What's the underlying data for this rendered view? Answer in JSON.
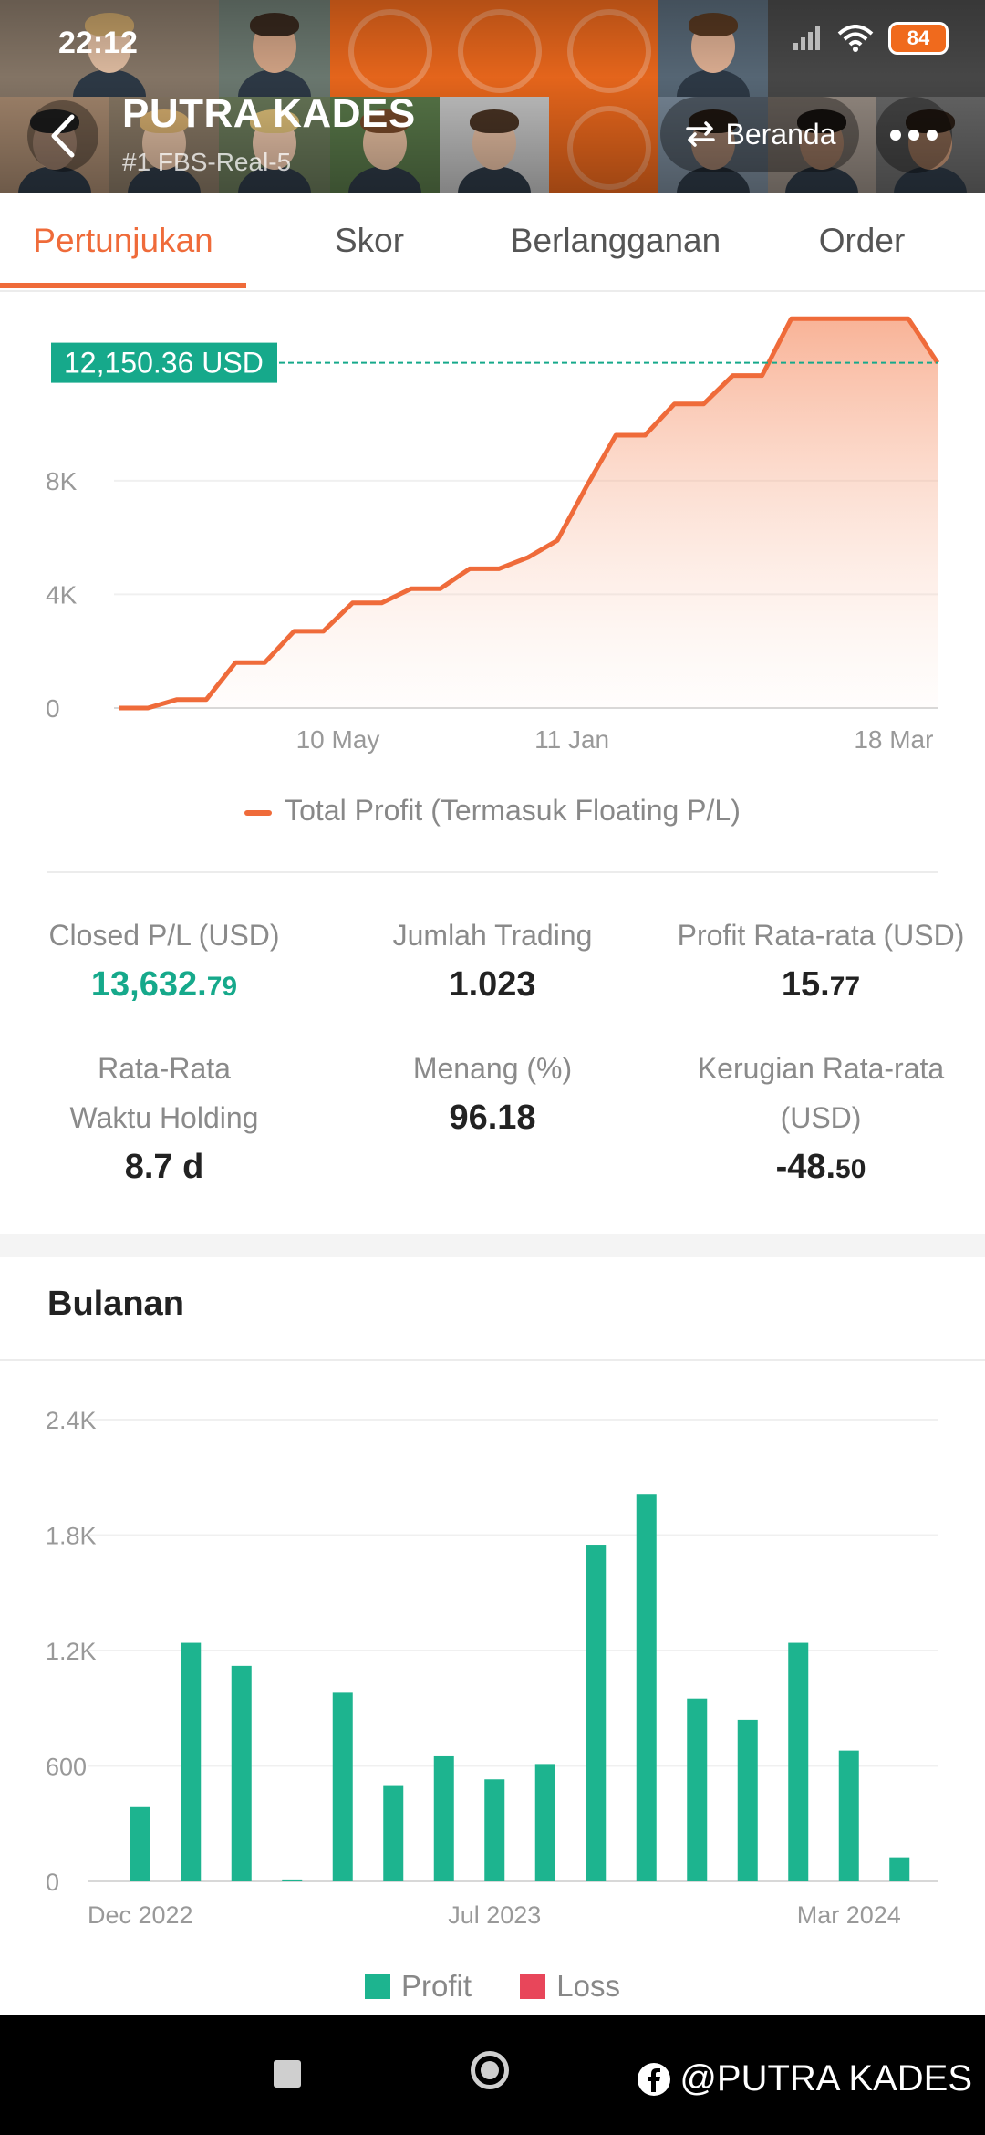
{
  "status_bar": {
    "time": "22:12",
    "battery": "84"
  },
  "header": {
    "name": "PUTRA KADES",
    "subtitle": "#1  FBS-Real-5",
    "beranda_label": "Beranda"
  },
  "tabs": [
    {
      "label": "Pertunjukan",
      "active": true
    },
    {
      "label": "Skor",
      "active": false
    },
    {
      "label": "Berlangganan",
      "active": false
    },
    {
      "label": "Order",
      "active": false
    }
  ],
  "colors": {
    "accent": "#ef6b3a",
    "profit": "#1db48f",
    "loss": "#e8465a"
  },
  "stats": {
    "closed_pl_label": "Closed P/L (USD)",
    "closed_pl_main": "13,632.",
    "closed_pl_decimal": "79",
    "trades_label": "Jumlah Trading",
    "trades_value": "1.023",
    "avg_profit_label": "Profit Rata-rata (USD)",
    "avg_profit_main": "15.",
    "avg_profit_decimal": "77",
    "hold_label": "Rata-Rata Waktu Holding",
    "hold_value": "8.7 d",
    "win_label": "Menang (%)",
    "win_value": "96.18",
    "avg_loss_label": "Kerugian Rata-rata (USD)",
    "avg_loss_main": "-48.",
    "avg_loss_decimal": "50"
  },
  "monthly": {
    "title": "Bulanan"
  },
  "watermark": "@PUTRA KADES",
  "chart_data": [
    {
      "type": "area",
      "series": [
        {
          "name": "Total Profit (Termasuk Floating P/L)",
          "values": [
            0,
            0,
            300,
            300,
            1600,
            1600,
            2700,
            2700,
            3700,
            3700,
            4200,
            4200,
            4900,
            4900,
            5300,
            5900,
            7800,
            9600,
            9600,
            10700,
            10700,
            11700,
            11700,
            13700,
            13700,
            13700,
            13700,
            13700,
            12150
          ]
        }
      ],
      "ytick_labels": [
        "0",
        "4K",
        "8K"
      ],
      "ytick_values": [
        0,
        4000,
        8000
      ],
      "xtick_labels": [
        "10 May",
        "11 Jan",
        "18 Mar"
      ],
      "xtick_positions": [
        7.5,
        15.5,
        26.5
      ],
      "annotation": "12,150.36 USD",
      "annotation_value": 12150.36,
      "ylim": [
        0,
        14000
      ],
      "legend_position": "bottom"
    },
    {
      "type": "bar",
      "series": [
        {
          "name": "Profit",
          "values": [
            390,
            1240,
            1120,
            10,
            980,
            500,
            650,
            530,
            610,
            1750,
            2010,
            950,
            840,
            1240,
            680,
            125
          ]
        },
        {
          "name": "Loss",
          "values": []
        }
      ],
      "ytick_labels": [
        "0",
        "600",
        "1.2K",
        "1.8K",
        "2.4K"
      ],
      "ytick_values": [
        0,
        600,
        1200,
        1800,
        2400
      ],
      "xtick_labels": [
        "Dec 2022",
        "Jul 2023",
        "Mar 2024"
      ],
      "xtick_indices": [
        0,
        7,
        14
      ],
      "ylim": [
        0,
        2400
      ],
      "legend_position": "bottom"
    }
  ]
}
